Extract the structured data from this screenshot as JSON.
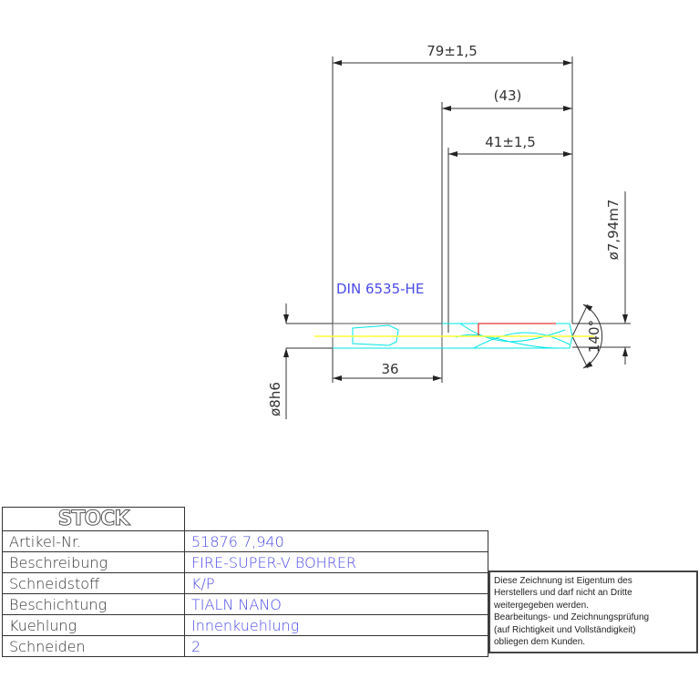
{
  "drawing": {
    "dim_total": "79±1,5",
    "dim_flute_ref": "(43)",
    "dim_flute": "41±1,5",
    "dim_diameter": "ø7,94m7",
    "dim_shank_length": "36",
    "dim_shank_diameter": "ø8h6",
    "point_angle": "140°",
    "standard": "DIN 6535-HE",
    "colors": {
      "body": "#00e5e5",
      "centerline": "#ffff33",
      "accent": "#e00000",
      "standard_text": "#4a4ae6"
    }
  },
  "table": {
    "logo": "STOCK",
    "rows": [
      {
        "label": "Artikel-Nr.",
        "value": "51876 7,940"
      },
      {
        "label": "Beschreibung",
        "value": "FIRE-SUPER-V BOHRER"
      },
      {
        "label": "Schneidstoff",
        "value": "K/P"
      },
      {
        "label": "Beschichtung",
        "value": "TIALN NANO"
      },
      {
        "label": "Kuehlung",
        "value": "Innenkuehlung"
      },
      {
        "label": "Schneiden",
        "value": "2"
      }
    ]
  },
  "note": [
    "Diese Zeichnung ist Eigentum des",
    "Herstellers und darf nicht an Dritte",
    "weitergegeben werden.",
    "Bearbeitungs- und Zeichnungsprüfung",
    "(auf Richtigkeit und Vollständigkeit)",
    "obliegen dem Kunden."
  ]
}
